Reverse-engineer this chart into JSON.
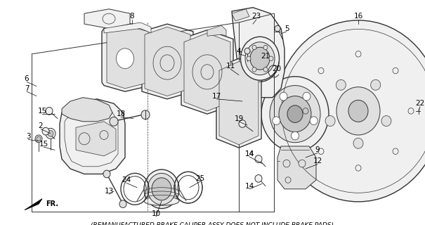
{
  "caption": "(REMANUFACTURED BRAKE CALIPER ASSY DOES NOT INCLUDE BRAKE PADS)",
  "bg_color": "#ffffff",
  "lc": "#333333",
  "lc2": "#555555",
  "fc_light": "#f0f0f0",
  "fc_mid": "#e0e0e0",
  "fc_dark": "#c8c8c8",
  "fc_vdark": "#aaaaaa",
  "lw_thick": 1.0,
  "lw_mid": 0.7,
  "lw_thin": 0.5,
  "font_size": 7.5,
  "caption_size": 6.5
}
